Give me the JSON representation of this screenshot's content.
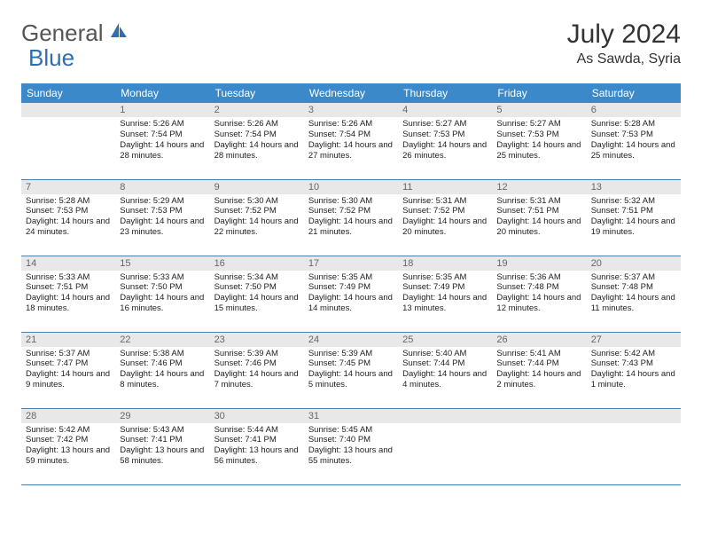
{
  "brand": {
    "general": "General",
    "blue": "Blue"
  },
  "title": "July 2024",
  "location": "As Sawda, Syria",
  "colors": {
    "header_bg": "#3b89c9",
    "header_text": "#ffffff",
    "daynum_bg": "#e8e8e8",
    "daynum_text": "#666666",
    "border": "#4a7fae",
    "logo_gray": "#555555",
    "logo_blue": "#2f6fb0"
  },
  "weekdays": [
    "Sunday",
    "Monday",
    "Tuesday",
    "Wednesday",
    "Thursday",
    "Friday",
    "Saturday"
  ],
  "start_offset": 1,
  "days": [
    {
      "n": "1",
      "sr": "Sunrise: 5:26 AM",
      "ss": "Sunset: 7:54 PM",
      "dl": "Daylight: 14 hours and 28 minutes."
    },
    {
      "n": "2",
      "sr": "Sunrise: 5:26 AM",
      "ss": "Sunset: 7:54 PM",
      "dl": "Daylight: 14 hours and 28 minutes."
    },
    {
      "n": "3",
      "sr": "Sunrise: 5:26 AM",
      "ss": "Sunset: 7:54 PM",
      "dl": "Daylight: 14 hours and 27 minutes."
    },
    {
      "n": "4",
      "sr": "Sunrise: 5:27 AM",
      "ss": "Sunset: 7:53 PM",
      "dl": "Daylight: 14 hours and 26 minutes."
    },
    {
      "n": "5",
      "sr": "Sunrise: 5:27 AM",
      "ss": "Sunset: 7:53 PM",
      "dl": "Daylight: 14 hours and 25 minutes."
    },
    {
      "n": "6",
      "sr": "Sunrise: 5:28 AM",
      "ss": "Sunset: 7:53 PM",
      "dl": "Daylight: 14 hours and 25 minutes."
    },
    {
      "n": "7",
      "sr": "Sunrise: 5:28 AM",
      "ss": "Sunset: 7:53 PM",
      "dl": "Daylight: 14 hours and 24 minutes."
    },
    {
      "n": "8",
      "sr": "Sunrise: 5:29 AM",
      "ss": "Sunset: 7:53 PM",
      "dl": "Daylight: 14 hours and 23 minutes."
    },
    {
      "n": "9",
      "sr": "Sunrise: 5:30 AM",
      "ss": "Sunset: 7:52 PM",
      "dl": "Daylight: 14 hours and 22 minutes."
    },
    {
      "n": "10",
      "sr": "Sunrise: 5:30 AM",
      "ss": "Sunset: 7:52 PM",
      "dl": "Daylight: 14 hours and 21 minutes."
    },
    {
      "n": "11",
      "sr": "Sunrise: 5:31 AM",
      "ss": "Sunset: 7:52 PM",
      "dl": "Daylight: 14 hours and 20 minutes."
    },
    {
      "n": "12",
      "sr": "Sunrise: 5:31 AM",
      "ss": "Sunset: 7:51 PM",
      "dl": "Daylight: 14 hours and 20 minutes."
    },
    {
      "n": "13",
      "sr": "Sunrise: 5:32 AM",
      "ss": "Sunset: 7:51 PM",
      "dl": "Daylight: 14 hours and 19 minutes."
    },
    {
      "n": "14",
      "sr": "Sunrise: 5:33 AM",
      "ss": "Sunset: 7:51 PM",
      "dl": "Daylight: 14 hours and 18 minutes."
    },
    {
      "n": "15",
      "sr": "Sunrise: 5:33 AM",
      "ss": "Sunset: 7:50 PM",
      "dl": "Daylight: 14 hours and 16 minutes."
    },
    {
      "n": "16",
      "sr": "Sunrise: 5:34 AM",
      "ss": "Sunset: 7:50 PM",
      "dl": "Daylight: 14 hours and 15 minutes."
    },
    {
      "n": "17",
      "sr": "Sunrise: 5:35 AM",
      "ss": "Sunset: 7:49 PM",
      "dl": "Daylight: 14 hours and 14 minutes."
    },
    {
      "n": "18",
      "sr": "Sunrise: 5:35 AM",
      "ss": "Sunset: 7:49 PM",
      "dl": "Daylight: 14 hours and 13 minutes."
    },
    {
      "n": "19",
      "sr": "Sunrise: 5:36 AM",
      "ss": "Sunset: 7:48 PM",
      "dl": "Daylight: 14 hours and 12 minutes."
    },
    {
      "n": "20",
      "sr": "Sunrise: 5:37 AM",
      "ss": "Sunset: 7:48 PM",
      "dl": "Daylight: 14 hours and 11 minutes."
    },
    {
      "n": "21",
      "sr": "Sunrise: 5:37 AM",
      "ss": "Sunset: 7:47 PM",
      "dl": "Daylight: 14 hours and 9 minutes."
    },
    {
      "n": "22",
      "sr": "Sunrise: 5:38 AM",
      "ss": "Sunset: 7:46 PM",
      "dl": "Daylight: 14 hours and 8 minutes."
    },
    {
      "n": "23",
      "sr": "Sunrise: 5:39 AM",
      "ss": "Sunset: 7:46 PM",
      "dl": "Daylight: 14 hours and 7 minutes."
    },
    {
      "n": "24",
      "sr": "Sunrise: 5:39 AM",
      "ss": "Sunset: 7:45 PM",
      "dl": "Daylight: 14 hours and 5 minutes."
    },
    {
      "n": "25",
      "sr": "Sunrise: 5:40 AM",
      "ss": "Sunset: 7:44 PM",
      "dl": "Daylight: 14 hours and 4 minutes."
    },
    {
      "n": "26",
      "sr": "Sunrise: 5:41 AM",
      "ss": "Sunset: 7:44 PM",
      "dl": "Daylight: 14 hours and 2 minutes."
    },
    {
      "n": "27",
      "sr": "Sunrise: 5:42 AM",
      "ss": "Sunset: 7:43 PM",
      "dl": "Daylight: 14 hours and 1 minute."
    },
    {
      "n": "28",
      "sr": "Sunrise: 5:42 AM",
      "ss": "Sunset: 7:42 PM",
      "dl": "Daylight: 13 hours and 59 minutes."
    },
    {
      "n": "29",
      "sr": "Sunrise: 5:43 AM",
      "ss": "Sunset: 7:41 PM",
      "dl": "Daylight: 13 hours and 58 minutes."
    },
    {
      "n": "30",
      "sr": "Sunrise: 5:44 AM",
      "ss": "Sunset: 7:41 PM",
      "dl": "Daylight: 13 hours and 56 minutes."
    },
    {
      "n": "31",
      "sr": "Sunrise: 5:45 AM",
      "ss": "Sunset: 7:40 PM",
      "dl": "Daylight: 13 hours and 55 minutes."
    }
  ]
}
